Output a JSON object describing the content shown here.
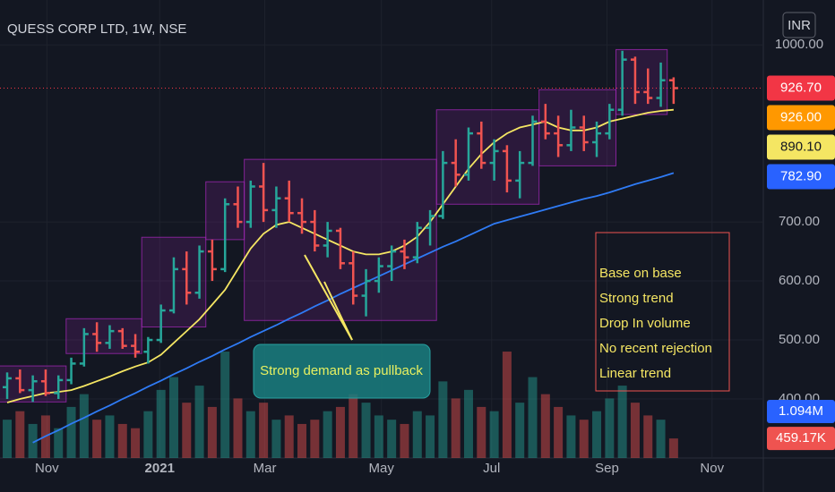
{
  "chart_data": {
    "type": "ohlc",
    "title": "QUESS CORP LTD, 1W, NSE",
    "currency": "INR",
    "open": [
      420,
      435,
      415,
      430,
      410,
      432,
      460,
      510,
      495,
      515,
      490,
      480,
      500,
      550,
      620,
      580,
      650,
      620,
      730,
      700,
      760,
      720,
      740,
      715,
      700,
      660,
      685,
      630,
      575,
      600,
      625,
      650,
      640,
      690,
      710,
      800,
      780,
      850,
      800,
      820,
      770,
      800,
      870,
      850,
      830,
      860,
      835,
      850,
      890,
      975,
      920,
      910,
      940
    ],
    "high": [
      445,
      450,
      440,
      450,
      440,
      470,
      520,
      530,
      525,
      520,
      510,
      505,
      560,
      640,
      650,
      660,
      670,
      740,
      760,
      770,
      800,
      760,
      770,
      740,
      720,
      700,
      690,
      650,
      620,
      640,
      660,
      670,
      700,
      720,
      820,
      840,
      860,
      870,
      840,
      830,
      820,
      880,
      900,
      880,
      890,
      880,
      870,
      900,
      990,
      980,
      960,
      970,
      945
    ],
    "low": [
      400,
      410,
      395,
      405,
      400,
      425,
      455,
      480,
      485,
      485,
      470,
      460,
      495,
      545,
      560,
      570,
      600,
      615,
      690,
      690,
      700,
      690,
      700,
      680,
      650,
      640,
      620,
      560,
      540,
      580,
      600,
      620,
      630,
      660,
      705,
      760,
      770,
      790,
      770,
      750,
      740,
      795,
      840,
      810,
      820,
      820,
      810,
      840,
      880,
      900,
      900,
      895,
      900
    ],
    "close": [
      435,
      415,
      430,
      410,
      432,
      460,
      510,
      495,
      515,
      490,
      480,
      500,
      550,
      620,
      580,
      650,
      620,
      730,
      700,
      760,
      720,
      740,
      715,
      700,
      660,
      685,
      630,
      575,
      600,
      625,
      650,
      640,
      690,
      710,
      800,
      780,
      850,
      800,
      820,
      770,
      800,
      870,
      850,
      830,
      860,
      835,
      850,
      890,
      975,
      920,
      910,
      940,
      926.7
    ],
    "volume": [
      0.9,
      1.1,
      0.8,
      1.0,
      0.7,
      1.2,
      1.5,
      0.9,
      1.0,
      0.8,
      0.7,
      1.1,
      1.6,
      1.9,
      1.3,
      1.7,
      1.2,
      2.5,
      1.4,
      1.1,
      1.3,
      0.9,
      1.0,
      0.8,
      0.9,
      1.1,
      1.2,
      1.5,
      1.3,
      1.0,
      0.9,
      0.8,
      1.1,
      1.0,
      1.8,
      1.4,
      1.6,
      1.2,
      1.1,
      2.5,
      1.3,
      1.9,
      1.5,
      1.2,
      1.0,
      0.9,
      1.1,
      1.4,
      1.7,
      1.3,
      1.0,
      0.9,
      0.45917
    ],
    "up_color": "#26a69a",
    "down_color": "#ef5350",
    "moving_averages": [
      {
        "color": "#f5e663",
        "values": [
          394,
          400,
          405,
          410,
          412,
          415,
          422,
          430,
          438,
          447,
          455,
          462,
          475,
          495,
          515,
          535,
          560,
          585,
          620,
          655,
          680,
          695,
          700,
          690,
          680,
          670,
          660,
          650,
          645,
          645,
          650,
          660,
          675,
          700,
          730,
          760,
          790,
          815,
          835,
          850,
          860,
          865,
          870,
          860,
          855,
          855,
          860,
          870,
          875,
          880,
          885,
          888,
          890.1
        ]
      },
      {
        "color": "#2f7bf5",
        "values": [
          null,
          null,
          326,
          337,
          347,
          358,
          368,
          379,
          389,
          400,
          410,
          421,
          431,
          442,
          452,
          463,
          473,
          484,
          494,
          505,
          515,
          525,
          536,
          546,
          557,
          567,
          578,
          588,
          598,
          608,
          618,
          628,
          638,
          648,
          658,
          667,
          677,
          687,
          697,
          703,
          709,
          715,
          721,
          727,
          733,
          739,
          744,
          750,
          757,
          764,
          770,
          776,
          782.9
        ]
      }
    ],
    "boxes": [
      {
        "start": -0.6,
        "end": 4.6,
        "low": 395,
        "high": 456
      },
      {
        "start": 4.6,
        "end": 10.5,
        "low": 477,
        "high": 536
      },
      {
        "start": 10.5,
        "end": 15.5,
        "low": 522,
        "high": 674
      },
      {
        "start": 15.5,
        "end": 18.5,
        "low": 670,
        "high": 768
      },
      {
        "start": 18.5,
        "end": 33.5,
        "low": 533,
        "high": 806
      },
      {
        "start": 33.5,
        "end": 41.5,
        "low": 730,
        "high": 890
      },
      {
        "start": 41.5,
        "end": 47.5,
        "low": 795,
        "high": 924
      },
      {
        "start": 47.5,
        "end": 51.5,
        "low": 882,
        "high": 992
      }
    ],
    "ylim": [
      300,
      1076
    ],
    "yticks": [
      {
        "value": 1000,
        "label": "1000.00"
      },
      {
        "value": 700,
        "label": "700.00"
      },
      {
        "value": 600,
        "label": "600.00"
      },
      {
        "value": 500,
        "label": "500.00"
      },
      {
        "value": 400,
        "label": "400.00"
      }
    ],
    "xlim": [
      -0.56,
      59
    ],
    "xticks": [
      {
        "value": 3.1,
        "label": "Nov"
      },
      {
        "value": 11.9,
        "label": "2021"
      },
      {
        "value": 20.1,
        "label": "Mar"
      },
      {
        "value": 29.2,
        "label": "May"
      },
      {
        "value": 37.8,
        "label": "Jul"
      },
      {
        "value": 46.8,
        "label": "Sep"
      },
      {
        "value": 55,
        "label": "Nov"
      }
    ],
    "volume_ylim": [
      0,
      10.76
    ],
    "price_badges": [
      {
        "value": 926.7,
        "label": "926.70",
        "color": "#f23645"
      },
      {
        "value": 926,
        "label": "926.00",
        "color": "#ff9800"
      },
      {
        "value": 890.1,
        "label": "890.10",
        "color": "#f5e663"
      },
      {
        "value": 782.9,
        "label": "782.90",
        "color": "#2962ff"
      }
    ],
    "volume_badges": [
      {
        "value": 1.094,
        "label": "1.094M",
        "color": "#2962ff"
      },
      {
        "value": 0.45917,
        "label": "459.17K",
        "color": "#ef5350"
      }
    ],
    "callout": "Strong demand as pullback",
    "notes": [
      "Base on base",
      "Strong trend",
      "Drop In volume",
      "No recent rejection",
      "Linear trend"
    ]
  }
}
